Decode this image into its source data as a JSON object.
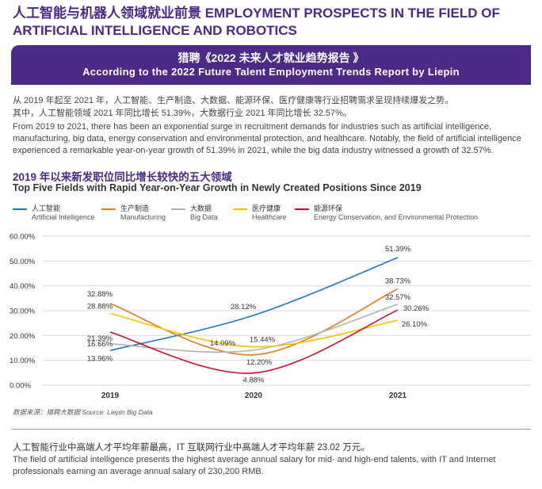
{
  "header": {
    "title": "人工智能与机器人领域就业前景 EMPLOYMENT PROSPECTS IN THE FIELD OF ARTIFICIAL INTELLIGENCE AND ROBOTICS",
    "banner_cn": "猎聘《2022 未来人才就业趋势报告 》",
    "banner_en": "According to the 2022 Future Talent Employment Trends Report by Liepin"
  },
  "intro": {
    "cn_line1": "从 2019 年起至 2021 年，人工智能、生产制造、大数据、能源环保、医疗健康等行业招聘需求呈现持续爆发之势。",
    "cn_line2": "其中，人工智能领域 2021 年同比增长 51.39%，大数据行业 2021 年同比增长 32.57%。",
    "en_text": "From 2019 to 2021, there has been an exponential surge in recruitment demands for industries such as artificial intelligence, manufacturing, big data, energy conservation and environmental protection, and healthcare. Notably, the field of artificial intelligence experienced a remarkable year-on-year growth of 51.39% in 2021, while the big data industry witnessed a growth of 32.57%."
  },
  "section": {
    "title_cn": "2019 年以来新发职位同比增长较快的五大领域",
    "title_en": "Top Five Fields with Rapid Year-on-Year Growth in Newly Created Positions Since 2019"
  },
  "chart_data": {
    "type": "line",
    "title": "",
    "xlabel": "",
    "ylabel": "",
    "x": [
      "2019",
      "2020",
      "2021"
    ],
    "ylim": [
      0,
      60
    ],
    "yticks": [
      "0.00%",
      "10.00%",
      "20.00%",
      "30.00%",
      "40.00%",
      "50.00%",
      "60.00%"
    ],
    "grid": "horizontal",
    "legend": "top",
    "series": [
      {
        "name": "人工智能",
        "name_en": "Artificial Intelligence",
        "color": "#1f77c4",
        "values": [
          13.96,
          28.12,
          51.39
        ],
        "labels": [
          "13.96%",
          "28.12%",
          "51.39%"
        ]
      },
      {
        "name": "生产制造",
        "name_en": "Manufacturing",
        "color": "#e07b20",
        "values": [
          32.88,
          12.2,
          38.73
        ],
        "labels": [
          "32.88%",
          "12.20%",
          "38.73%"
        ]
      },
      {
        "name": "大数据",
        "name_en": "Big Data",
        "color": "#b3b3b3",
        "values": [
          16.66,
          14.09,
          32.57
        ],
        "labels": [
          "16.66%",
          "14.09%",
          "32.57%"
        ]
      },
      {
        "name": "医疗健康",
        "name_en": "Healthcare",
        "color": "#f5c400",
        "values": [
          28.88,
          15.44,
          26.1
        ],
        "labels": [
          "28.88%",
          "15.44%",
          "26.10%"
        ]
      },
      {
        "name": "能源环保",
        "name_en": "Energy Conservation, and Environmental Protection",
        "color": "#c8102e",
        "values": [
          21.39,
          4.88,
          30.26
        ],
        "labels": [
          "21.39%",
          "4.88%",
          "30.26%"
        ]
      }
    ]
  },
  "source": "数据来源：猎聘大数据  Source: Liepin Big Data",
  "footer": {
    "cn": "人工智能行业中高端人才平均年薪最高，IT 互联网行业中高端人才平均年薪 23.02 万元。",
    "en": "The field of artificial intelligence presents the highest average annual salary for mid- and high-end talents, with IT and Internet professionals earning an average annual salary of 230,200 RMB."
  }
}
